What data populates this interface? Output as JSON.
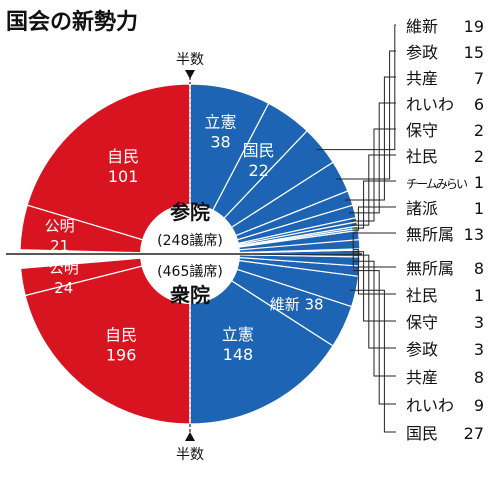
{
  "title": "国会の新勢力",
  "majority_label": "半数",
  "colors": {
    "ruling": "#d7141f",
    "opposition": "#1e64b4",
    "line": "#222222"
  },
  "chart_data": [
    {
      "type": "pie",
      "chamber": "参院",
      "total_label": "(248議席)",
      "total": 248,
      "slices": [
        {
          "name": "自民",
          "value": 101,
          "group": "ruling",
          "label_inside": true
        },
        {
          "name": "公明",
          "value": 21,
          "group": "ruling",
          "label_inside": true
        },
        {
          "name": "立憲",
          "value": 38,
          "group": "opposition",
          "label_inside": true
        },
        {
          "name": "国民",
          "value": 22,
          "group": "opposition",
          "label_inside": true
        },
        {
          "name": "維新",
          "value": 19,
          "group": "opposition",
          "label_inside": false
        },
        {
          "name": "参政",
          "value": 15,
          "group": "opposition",
          "label_inside": false
        },
        {
          "name": "共産",
          "value": 7,
          "group": "opposition",
          "label_inside": false
        },
        {
          "name": "れいわ",
          "value": 6,
          "group": "opposition",
          "label_inside": false
        },
        {
          "name": "保守",
          "value": 2,
          "group": "opposition",
          "label_inside": false
        },
        {
          "name": "社民",
          "value": 2,
          "group": "opposition",
          "label_inside": false
        },
        {
          "name": "チームみらい",
          "value": 1,
          "group": "opposition",
          "label_inside": false
        },
        {
          "name": "諸派",
          "value": 1,
          "group": "opposition",
          "label_inside": false
        },
        {
          "name": "無所属",
          "value": 13,
          "group": "opposition",
          "label_inside": false
        }
      ]
    },
    {
      "type": "pie",
      "chamber": "衆院",
      "total_label": "(465議席)",
      "total": 465,
      "slices": [
        {
          "name": "自民",
          "value": 196,
          "group": "ruling",
          "label_inside": true
        },
        {
          "name": "公明",
          "value": 24,
          "group": "ruling",
          "label_inside": true
        },
        {
          "name": "立憲",
          "value": 148,
          "group": "opposition",
          "label_inside": true
        },
        {
          "name": "維新",
          "value": 38,
          "group": "opposition",
          "label_inside": true
        },
        {
          "name": "国民",
          "value": 27,
          "group": "opposition",
          "label_inside": false
        },
        {
          "name": "れいわ",
          "value": 9,
          "group": "opposition",
          "label_inside": false
        },
        {
          "name": "共産",
          "value": 8,
          "group": "opposition",
          "label_inside": false
        },
        {
          "name": "参政",
          "value": 3,
          "group": "opposition",
          "label_inside": false
        },
        {
          "name": "保守",
          "value": 3,
          "group": "opposition",
          "label_inside": false
        },
        {
          "name": "社民",
          "value": 1,
          "group": "opposition",
          "label_inside": false
        },
        {
          "name": "無所属",
          "value": 8,
          "group": "opposition",
          "label_inside": false
        }
      ]
    }
  ]
}
